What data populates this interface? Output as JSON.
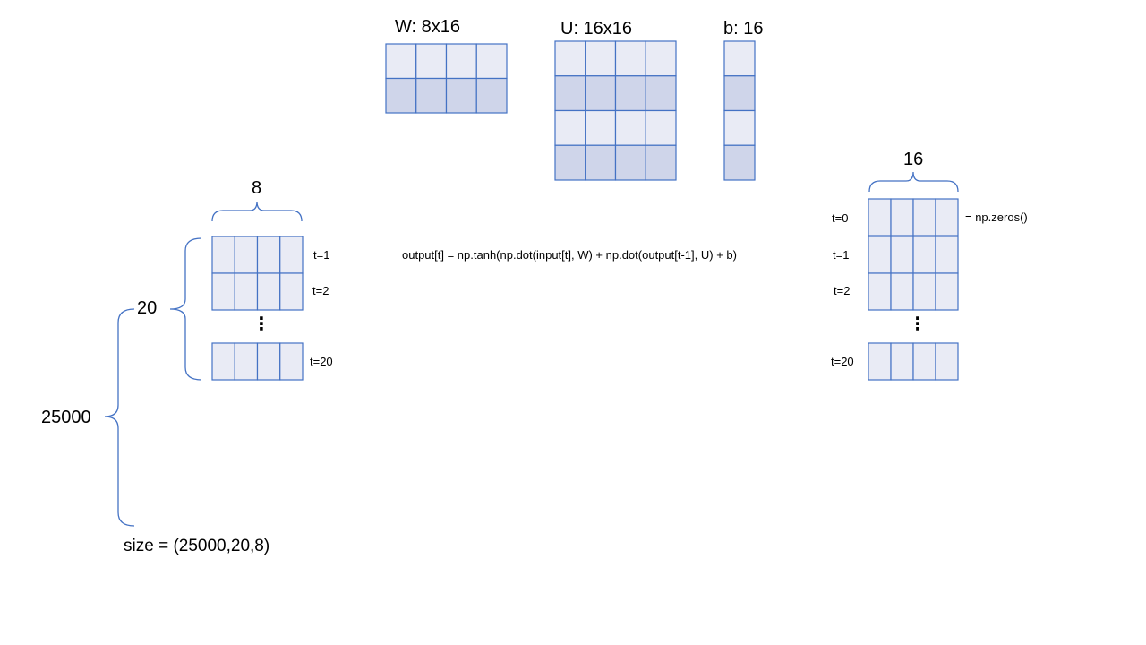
{
  "matrices": {
    "w_label": "W: 8x16",
    "u_label": "U: 16x16",
    "b_label": "b: 16"
  },
  "input_block": {
    "width_label": "8",
    "steps_label": "20",
    "batch_label": "25000",
    "t_labels": [
      "t=1",
      "t=2",
      "t=20"
    ],
    "size_label": "size = (25000,20,8)"
  },
  "formula": "output[t]  = np.tanh(np.dot(input[t],  W) + np.dot(output[t-1],  U) + b)",
  "output_block": {
    "width_label": "16",
    "t_labels": [
      "t=0",
      "t=1",
      "t=2",
      "t=20"
    ],
    "init_label": "= np.zeros()"
  },
  "ellipsis": "⋮",
  "colors": {
    "stroke": "#4472c4",
    "fill_light": "#e9ebf5",
    "fill_dark": "#cfd5ea"
  }
}
